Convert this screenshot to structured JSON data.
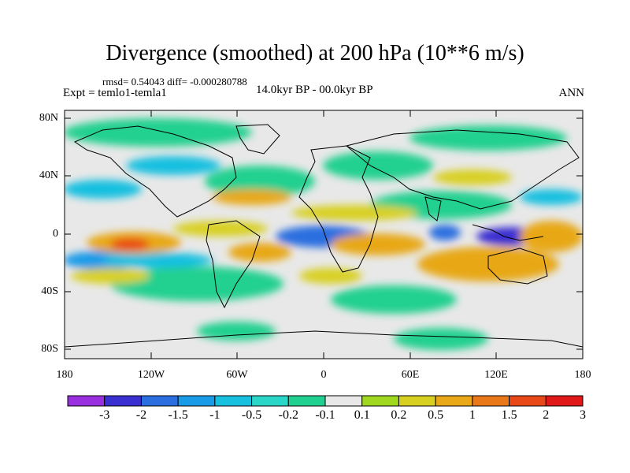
{
  "title": "Divergence (smoothed) at 200 hPa (10**6 m/s)",
  "stats": "rmsd= 0.54043  diff= -0.000280788",
  "experiment": "Expt = temlo1-temla1",
  "period": "14.0kyr BP - 00.0kyr BP",
  "season": "ANN",
  "y_ticks": [
    "80N",
    "40N",
    "0",
    "40S",
    "80S"
  ],
  "x_ticks": [
    "180",
    "120W",
    "60W",
    "0",
    "60E",
    "120E",
    "180"
  ],
  "colorbar": {
    "labels": [
      "-3",
      "-2",
      "-1.5",
      "-1",
      "-0.5",
      "-0.2",
      "-0.1",
      "0.1",
      "0.2",
      "0.5",
      "1",
      "1.5",
      "2",
      "3"
    ],
    "colors": [
      "#9a2fe0",
      "#3a2fd0",
      "#2a6ee0",
      "#1a9be8",
      "#18c0e0",
      "#2ad6c8",
      "#20d090",
      "#e8e8e8",
      "#a0d820",
      "#d8d020",
      "#e8a818",
      "#e87818",
      "#e84818",
      "#e01818"
    ]
  },
  "colors": {
    "background": "#e8e8e8",
    "land_outline": "#000000"
  }
}
